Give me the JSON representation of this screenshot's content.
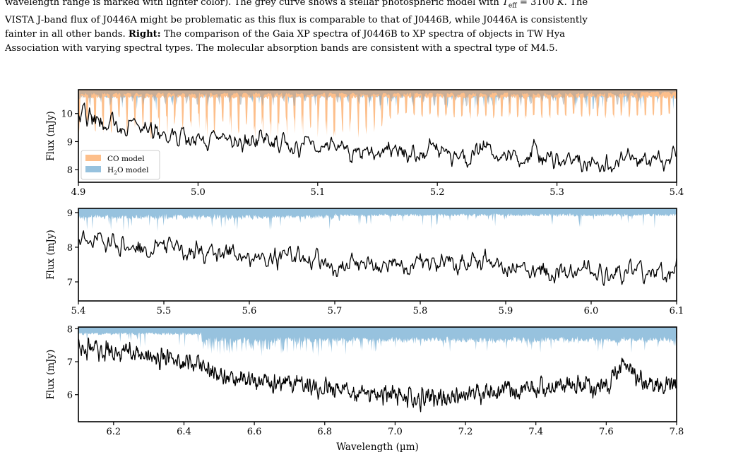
{
  "caption": {
    "lines": [
      [
        {
          "text": "wavelength range is marked with lighter color). The grey curve shows a stellar photospheric model with "
        },
        {
          "text": "T",
          "italic": true
        },
        {
          "text": "eff",
          "sub": true
        },
        {
          "text": " = 3100 "
        },
        {
          "text": "K",
          "italic": true
        },
        {
          "text": ". The"
        }
      ],
      [
        {
          "text": "VISTA J-band flux of J0446A might be problematic as this flux is comparable to that of J0446B, while J0446A is consistently"
        }
      ],
      [
        {
          "text": "fainter in all other bands. "
        },
        {
          "text": "Right:",
          "bold": true
        },
        {
          "text": " The comparison of the Gaia XP spectra of J0446B to XP spectra of objects in TW Hya"
        }
      ],
      [
        {
          "text": "Association with varying spectral types. The molecular absorption bands are consistent with a spectral type of M4.5."
        }
      ]
    ]
  },
  "chart_data": [
    {
      "type": "line",
      "panel": "top",
      "xlim": [
        4.9,
        5.4
      ],
      "ylim": [
        7.55,
        10.85
      ],
      "xticks": [
        4.9,
        5.0,
        5.1,
        5.2,
        5.3,
        5.4
      ],
      "yticks": [
        8,
        9,
        10
      ],
      "xtick_labels": [
        "4.9",
        "5.0",
        "5.1",
        "5.2",
        "5.3",
        "5.4"
      ],
      "ytick_labels": [
        "8",
        "9",
        "10"
      ],
      "ylabel": "Flux (mJy)",
      "xlabel": "",
      "legend": {
        "position": "lower-left",
        "entries": [
          {
            "label": "CO model",
            "color": "#fdbf8b"
          },
          {
            "label_parts": [
              {
                "text": "H"
              },
              {
                "text": "2",
                "sub": true
              },
              {
                "text": "O model"
              }
            ],
            "color": "#97c2de"
          }
        ]
      },
      "series": [
        {
          "name": "",
          "color": "#000000",
          "x": [
            4.9,
            4.92,
            4.94,
            4.96,
            4.98,
            5.0,
            5.02,
            5.04,
            5.06,
            5.08,
            5.1,
            5.12,
            5.14,
            5.16,
            5.18,
            5.2,
            5.22,
            5.24,
            5.26,
            5.28,
            5.3,
            5.32,
            5.34,
            5.36,
            5.38,
            5.4
          ],
          "y": [
            10.05,
            9.7,
            9.5,
            9.4,
            9.25,
            9.05,
            9.05,
            8.95,
            9.05,
            8.8,
            8.9,
            8.75,
            8.65,
            8.8,
            8.5,
            8.75,
            8.35,
            8.7,
            8.4,
            8.6,
            8.3,
            8.45,
            8.2,
            8.45,
            8.3,
            8.45
          ]
        },
        {
          "name": "CO model",
          "color": "#fdbf8b",
          "x": [
            4.9,
            4.95,
            5.0,
            5.05,
            5.1,
            5.15,
            5.2,
            5.25,
            5.3,
            5.35,
            5.4
          ],
          "y": [
            10.75,
            10.75,
            10.75,
            10.75,
            10.75,
            10.75,
            10.75,
            10.75,
            10.75,
            10.75,
            10.75
          ]
        },
        {
          "name": "H2O model",
          "color": "#97c2de",
          "x": [
            4.9,
            4.95,
            5.0,
            5.05,
            5.1,
            5.15,
            5.2,
            5.25,
            5.3,
            5.35,
            5.4
          ],
          "y": [
            10.75,
            10.75,
            10.75,
            10.75,
            10.75,
            10.75,
            10.75,
            10.75,
            10.75,
            10.75,
            10.75
          ]
        }
      ]
    },
    {
      "type": "line",
      "panel": "middle",
      "xlim": [
        5.4,
        6.1
      ],
      "ylim": [
        6.45,
        9.12
      ],
      "xticks": [
        5.4,
        5.5,
        5.6,
        5.7,
        5.8,
        5.9,
        6.0,
        6.1
      ],
      "yticks": [
        7,
        8,
        9
      ],
      "xtick_labels": [
        "5.4",
        "5.5",
        "5.6",
        "5.7",
        "5.8",
        "5.9",
        "6.0",
        "6.1"
      ],
      "ytick_labels": [
        "7",
        "8",
        "9"
      ],
      "ylabel": "Flux (mJy)",
      "xlabel": "",
      "series": [
        {
          "name": "",
          "color": "#000000",
          "x": [
            5.4,
            5.43,
            5.46,
            5.49,
            5.52,
            5.55,
            5.58,
            5.61,
            5.64,
            5.67,
            5.7,
            5.73,
            5.76,
            5.79,
            5.82,
            5.85,
            5.88,
            5.91,
            5.94,
            5.97,
            6.0,
            6.03,
            6.06,
            6.1
          ],
          "y": [
            8.35,
            8.1,
            8.1,
            8.0,
            7.95,
            7.8,
            7.85,
            7.7,
            7.75,
            7.6,
            7.45,
            7.55,
            7.5,
            7.55,
            7.5,
            7.45,
            7.55,
            7.3,
            7.35,
            7.3,
            7.35,
            7.2,
            7.35,
            7.3
          ]
        },
        {
          "name": "H2O model",
          "color": "#97c2de",
          "x": [
            5.4,
            5.5,
            5.6,
            5.7,
            5.8,
            5.9,
            6.0,
            6.1
          ],
          "y": [
            9.0,
            9.0,
            9.0,
            9.0,
            9.0,
            9.0,
            9.0,
            9.0
          ]
        }
      ]
    },
    {
      "type": "line",
      "panel": "bottom",
      "xlim": [
        6.1,
        7.8
      ],
      "ylim": [
        5.18,
        8.05
      ],
      "xticks": [
        6.2,
        6.4,
        6.6,
        6.8,
        7.0,
        7.2,
        7.4,
        7.6,
        7.8
      ],
      "yticks": [
        6,
        7,
        8
      ],
      "xtick_labels": [
        "6.2",
        "6.4",
        "6.6",
        "6.8",
        "7.0",
        "7.2",
        "7.4",
        "7.6",
        "7.8"
      ],
      "ytick_labels": [
        "6",
        "7",
        "8"
      ],
      "ylabel": "Flux (mJy)",
      "xlabel": "Wavelength (µm)",
      "series": [
        {
          "name": "",
          "color": "#000000",
          "x": [
            6.1,
            6.15,
            6.2,
            6.25,
            6.3,
            6.35,
            6.4,
            6.45,
            6.5,
            6.55,
            6.6,
            6.7,
            6.8,
            6.9,
            7.0,
            7.1,
            7.2,
            7.3,
            7.4,
            7.5,
            7.6,
            7.65,
            7.7,
            7.8
          ],
          "y": [
            7.45,
            7.35,
            7.3,
            7.25,
            7.15,
            7.15,
            7.0,
            6.85,
            6.6,
            6.45,
            6.35,
            6.3,
            6.2,
            6.05,
            5.95,
            5.85,
            6.0,
            6.1,
            6.2,
            6.25,
            6.3,
            6.95,
            6.4,
            6.3
          ]
        },
        {
          "name": "H2O model",
          "color": "#97c2de",
          "x": [
            6.1,
            6.3,
            6.5,
            6.7,
            6.9,
            7.1,
            7.3,
            7.5,
            7.7,
            7.8
          ],
          "y": [
            7.95,
            7.95,
            7.95,
            7.95,
            7.95,
            7.95,
            7.95,
            7.95,
            7.95,
            7.95
          ]
        }
      ]
    }
  ]
}
